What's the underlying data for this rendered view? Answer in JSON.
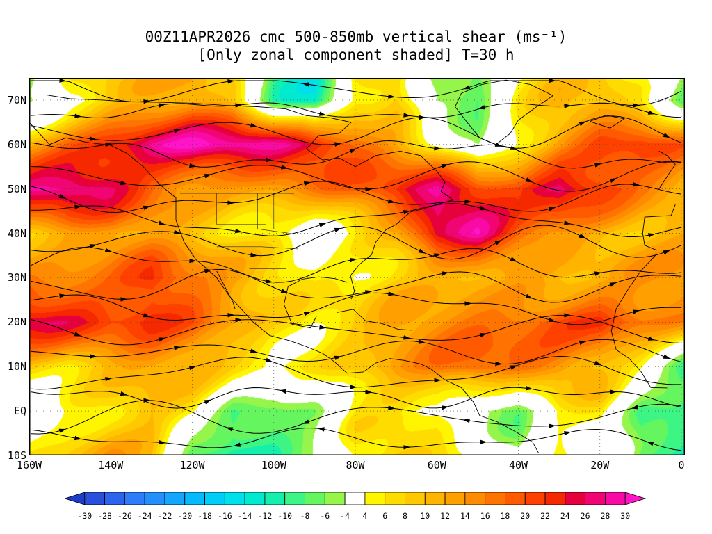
{
  "title": {
    "line1": "00Z11APR2026 cmc 500-850mb vertical shear (ms⁻¹)",
    "line2": "[Only zonal component shaded] T=30 h"
  },
  "axes": {
    "lat_labels": [
      "70N",
      "60N",
      "50N",
      "40N",
      "30N",
      "20N",
      "10N",
      "EQ",
      "10S"
    ],
    "lat_ticks": [
      70,
      60,
      50,
      40,
      30,
      20,
      10,
      0,
      -10
    ],
    "lon_labels": [
      "160W",
      "140W",
      "120W",
      "100W",
      "80W",
      "60W",
      "40W",
      "20W",
      "0"
    ],
    "lon_ticks": [
      -160,
      -140,
      -120,
      -100,
      -80,
      -60,
      -40,
      -20,
      0
    ]
  },
  "colorbar": {
    "labels": [
      "-30",
      "-28",
      "-26",
      "-24",
      "-22",
      "-20",
      "-18",
      "-16",
      "-14",
      "-12",
      "-10",
      "-8",
      "-6",
      "-4",
      "4",
      "6",
      "8",
      "10",
      "12",
      "14",
      "16",
      "18",
      "20",
      "22",
      "24",
      "26",
      "28",
      "30"
    ],
    "colors": [
      "#1e3cc8",
      "#2850dc",
      "#2d64ee",
      "#2d7cfa",
      "#238ffc",
      "#14a5fe",
      "#05bafe",
      "#00cdf8",
      "#00e0ea",
      "#00ead0",
      "#14f0ac",
      "#3cf584",
      "#64f55f",
      "#96f54b",
      "#ffffff",
      "#fff500",
      "#ffdc00",
      "#ffc800",
      "#ffb400",
      "#ffa000",
      "#ff8c00",
      "#ff7300",
      "#ff5a00",
      "#ff4100",
      "#f52800",
      "#e6003c",
      "#f00573",
      "#fa0aa5",
      "#ff14c8"
    ]
  },
  "chart_data": {
    "type": "heatmap",
    "title": "00Z11APR2026 cmc 500-850mb vertical shear (ms-1)",
    "subtitle": "[Only zonal component shaded] T=30 h",
    "model": "cmc",
    "init_time": "00Z11APR2026",
    "forecast_hour": 30,
    "variable": "500-850mb vertical wind shear, zonal component shaded",
    "units": "m/s",
    "overlay": "shear streamlines with arrowheads; dotted 10-degree graticule; coastlines",
    "lon_range": [
      -160,
      0
    ],
    "lat_range": [
      -10,
      75
    ],
    "levels": [
      -30,
      -28,
      -26,
      -24,
      -22,
      -20,
      -18,
      -16,
      -14,
      -12,
      -10,
      -8,
      -6,
      -4,
      4,
      6,
      8,
      10,
      12,
      14,
      16,
      18,
      20,
      22,
      24,
      26,
      28,
      30
    ],
    "legend_position": "bottom horizontal colorbar with out-of-range arrow endcaps",
    "grid": {
      "lats": [
        70,
        60,
        50,
        40,
        30,
        20,
        10,
        0,
        -10
      ],
      "lons": [
        -160,
        -150,
        -140,
        -130,
        -120,
        -110,
        -100,
        -90,
        -80,
        -70,
        -60,
        -50,
        -40,
        -30,
        -20,
        -10,
        0
      ],
      "values_mps": [
        [
          -6,
          4,
          8,
          10,
          12,
          8,
          -9,
          -12,
          6,
          10,
          -6,
          -8,
          4,
          9,
          10,
          5,
          -5
        ],
        [
          12,
          18,
          24,
          29,
          31,
          30,
          28,
          24,
          18,
          12,
          6,
          -4,
          6,
          13,
          19,
          21,
          17
        ],
        [
          27,
          29,
          25,
          18,
          14,
          12,
          14,
          16,
          18,
          22,
          27,
          22,
          21,
          29,
          24,
          17,
          12
        ],
        [
          10,
          12,
          14,
          12,
          8,
          6,
          4,
          0,
          6,
          11,
          26,
          28,
          18,
          12,
          10,
          10,
          12
        ],
        [
          14,
          16,
          18,
          24,
          18,
          12,
          8,
          4,
          4,
          8,
          10,
          12,
          12,
          10,
          10,
          12,
          14
        ],
        [
          26,
          23,
          20,
          22,
          20,
          14,
          8,
          6,
          8,
          12,
          14,
          16,
          18,
          21,
          24,
          18,
          14
        ],
        [
          10,
          8,
          10,
          12,
          10,
          6,
          4,
          6,
          10,
          14,
          17,
          19,
          16,
          14,
          10,
          4,
          -7
        ],
        [
          -4,
          4,
          8,
          11,
          6,
          -7,
          -9,
          -6,
          4,
          6,
          4,
          -4,
          -6,
          4,
          6,
          -9,
          -11
        ],
        [
          4,
          8,
          12,
          10,
          -8,
          -11,
          -8,
          -4,
          6,
          8,
          6,
          4,
          -4,
          6,
          4,
          -7,
          -9
        ]
      ]
    }
  }
}
